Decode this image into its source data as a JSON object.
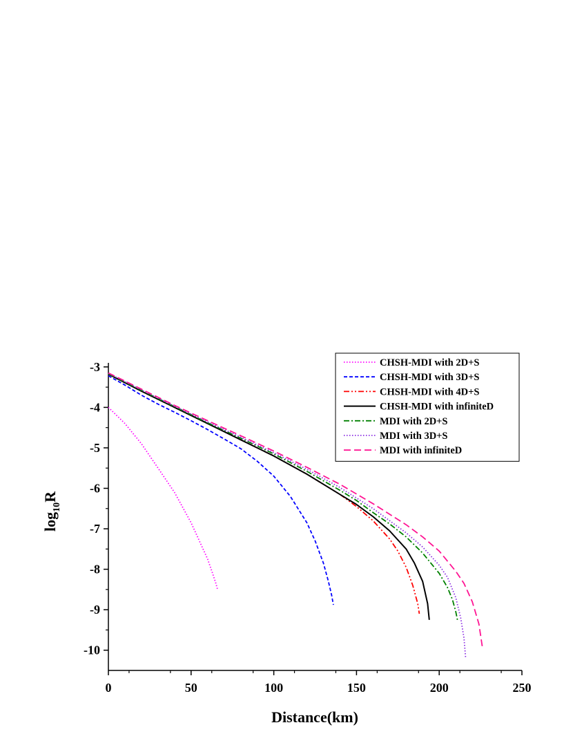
{
  "chart_data": {
    "type": "line",
    "xlabel": "Distance(km)",
    "ylabel": "log",
    "ylabel_sub": "10",
    "ylabel_tail": "R",
    "xlim": [
      0,
      250
    ],
    "ylim": [
      -10.5,
      -2.9
    ],
    "xticks": [
      0,
      50,
      100,
      150,
      200,
      250
    ],
    "yticks": [
      -3,
      -4,
      -5,
      -6,
      -7,
      -8,
      -9,
      -10
    ],
    "grid": false,
    "legend_position": "top-right",
    "series": [
      {
        "name": "CHSH-MDI with 2D+S",
        "color": "#ff00ff",
        "dash": "dotted",
        "x": [
          0,
          10,
          20,
          30,
          40,
          50,
          55,
          60,
          63,
          65,
          66
        ],
        "y": [
          -4.0,
          -4.4,
          -4.9,
          -5.5,
          -6.1,
          -6.85,
          -7.3,
          -7.75,
          -8.1,
          -8.35,
          -8.5
        ]
      },
      {
        "name": "CHSH-MDI with 3D+S",
        "color": "#0000ff",
        "dash": "short-dash",
        "x": [
          0,
          10,
          20,
          30,
          40,
          50,
          60,
          70,
          80,
          90,
          100,
          110,
          120,
          125,
          130,
          133,
          135,
          136
        ],
        "y": [
          -3.22,
          -3.45,
          -3.7,
          -3.92,
          -4.12,
          -4.33,
          -4.55,
          -4.78,
          -5.02,
          -5.33,
          -5.7,
          -6.2,
          -6.85,
          -7.3,
          -7.85,
          -8.3,
          -8.65,
          -8.88
        ]
      },
      {
        "name": "CHSH-MDI with 4D+S",
        "color": "#ff0000",
        "dash": "dash-dot-dot",
        "x": [
          0,
          20,
          40,
          60,
          80,
          100,
          120,
          140,
          150,
          160,
          170,
          175,
          180,
          184,
          187,
          188
        ],
        "y": [
          -3.18,
          -3.6,
          -4.0,
          -4.4,
          -4.8,
          -5.2,
          -5.65,
          -6.15,
          -6.45,
          -6.8,
          -7.25,
          -7.55,
          -7.95,
          -8.4,
          -8.85,
          -9.1
        ]
      },
      {
        "name": "CHSH-MDI with infiniteD",
        "color": "#000000",
        "dash": "solid",
        "x": [
          0,
          20,
          40,
          60,
          80,
          100,
          120,
          140,
          150,
          160,
          170,
          180,
          185,
          190,
          193,
          194
        ],
        "y": [
          -3.18,
          -3.6,
          -4.0,
          -4.4,
          -4.8,
          -5.2,
          -5.65,
          -6.15,
          -6.4,
          -6.7,
          -7.05,
          -7.5,
          -7.85,
          -8.3,
          -8.85,
          -9.25
        ]
      },
      {
        "name": "MDI with 2D+S",
        "color": "#008000",
        "dash": "dash-dot",
        "x": [
          0,
          20,
          40,
          60,
          80,
          100,
          120,
          140,
          150,
          160,
          170,
          180,
          190,
          200,
          205,
          208,
          210,
          211
        ],
        "y": [
          -3.17,
          -3.58,
          -3.98,
          -4.38,
          -4.76,
          -5.15,
          -5.58,
          -6.05,
          -6.3,
          -6.6,
          -6.88,
          -7.2,
          -7.6,
          -8.1,
          -8.45,
          -8.75,
          -9.05,
          -9.25
        ]
      },
      {
        "name": "MDI with 3D+S",
        "color": "#8a2be2",
        "dash": "dotted",
        "x": [
          0,
          20,
          40,
          60,
          80,
          100,
          120,
          140,
          160,
          180,
          190,
          200,
          205,
          210,
          213,
          215,
          216
        ],
        "y": [
          -3.16,
          -3.57,
          -3.97,
          -4.36,
          -4.74,
          -5.12,
          -5.53,
          -5.98,
          -6.5,
          -7.1,
          -7.45,
          -7.9,
          -8.2,
          -8.7,
          -9.2,
          -9.7,
          -10.2
        ]
      },
      {
        "name": "MDI with infiniteD",
        "color": "#ff1493",
        "dash": "long-dash",
        "x": [
          0,
          20,
          40,
          60,
          80,
          100,
          120,
          140,
          160,
          180,
          190,
          200,
          210,
          215,
          220,
          224,
          226
        ],
        "y": [
          -3.15,
          -3.55,
          -3.95,
          -4.33,
          -4.7,
          -5.08,
          -5.48,
          -5.9,
          -6.38,
          -6.9,
          -7.2,
          -7.55,
          -8.05,
          -8.35,
          -8.8,
          -9.35,
          -9.9
        ]
      }
    ]
  }
}
